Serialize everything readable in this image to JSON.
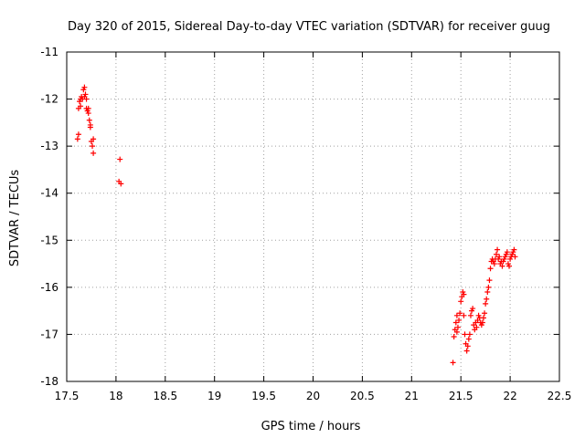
{
  "chart_data": {
    "type": "scatter",
    "title": "Day 320 of 2015, Sidereal Day-to-day VTEC variation (SDTVAR) for receiver guug",
    "xlabel": "GPS time / hours",
    "ylabel": "SDTVAR / TECUs",
    "xlim": [
      17.5,
      22.5
    ],
    "ylim": [
      -18,
      -11
    ],
    "xticks": [
      17.5,
      18,
      18.5,
      19,
      19.5,
      20,
      20.5,
      21,
      21.5,
      22,
      22.5
    ],
    "xtick_labels": [
      "17.5",
      "18",
      "18.5",
      "19",
      "19.5",
      "20",
      "20.5",
      "21",
      "21.5",
      "22",
      "22.5"
    ],
    "yticks": [
      -11,
      -12,
      -13,
      -14,
      -15,
      -16,
      -17,
      -18
    ],
    "ytick_labels": [
      "-11",
      "-12",
      "-13",
      "-14",
      "-15",
      "-16",
      "-17",
      "-18"
    ],
    "grid": true,
    "marker": "+",
    "marker_color": "#ff0000",
    "series": [
      {
        "name": "SDTVAR",
        "x": [
          17.61,
          17.62,
          17.62,
          17.63,
          17.64,
          17.64,
          17.65,
          17.66,
          17.67,
          17.68,
          17.68,
          17.69,
          17.7,
          17.7,
          17.71,
          17.72,
          17.72,
          17.73,
          17.74,
          17.74,
          17.75,
          17.76,
          17.77,
          17.77,
          18.04,
          18.03,
          18.05,
          21.42,
          21.43,
          21.44,
          21.45,
          21.46,
          21.46,
          21.47,
          21.48,
          21.49,
          21.5,
          21.51,
          21.52,
          21.53,
          21.53,
          21.54,
          21.55,
          21.56,
          21.57,
          21.58,
          21.59,
          21.6,
          21.61,
          21.62,
          21.63,
          21.64,
          21.65,
          21.66,
          21.67,
          21.68,
          21.69,
          21.7,
          21.71,
          21.72,
          21.73,
          21.74,
          21.75,
          21.76,
          21.77,
          21.78,
          21.79,
          21.8,
          21.81,
          21.82,
          21.83,
          21.84,
          21.85,
          21.86,
          21.87,
          21.88,
          21.89,
          21.9,
          21.91,
          21.92,
          21.93,
          21.94,
          21.95,
          21.96,
          21.97,
          21.98,
          21.99,
          22.0,
          22.01,
          22.02,
          22.03,
          22.04,
          22.05
        ],
        "y": [
          -12.85,
          -12.75,
          -12.2,
          -12.05,
          -12.0,
          -12.15,
          -11.95,
          -12.0,
          -11.8,
          -11.75,
          -11.95,
          -11.9,
          -12.0,
          -12.2,
          -12.25,
          -12.2,
          -12.3,
          -12.45,
          -12.55,
          -12.6,
          -12.9,
          -13.0,
          -13.15,
          -12.85,
          -13.28,
          -13.75,
          -13.8,
          -17.6,
          -17.05,
          -16.9,
          -16.75,
          -16.6,
          -16.95,
          -16.85,
          -16.7,
          -16.55,
          -16.3,
          -16.2,
          -16.1,
          -16.15,
          -16.6,
          -17.0,
          -17.2,
          -17.35,
          -17.25,
          -17.1,
          -17.0,
          -16.6,
          -16.5,
          -16.45,
          -16.8,
          -16.9,
          -16.75,
          -16.85,
          -16.7,
          -16.6,
          -16.65,
          -16.75,
          -16.8,
          -16.75,
          -16.65,
          -16.55,
          -16.35,
          -16.25,
          -16.1,
          -16.0,
          -15.85,
          -15.6,
          -15.45,
          -15.4,
          -15.45,
          -15.5,
          -15.4,
          -15.3,
          -15.2,
          -15.4,
          -15.35,
          -15.5,
          -15.45,
          -15.55,
          -15.45,
          -15.4,
          -15.35,
          -15.3,
          -15.25,
          -15.5,
          -15.55,
          -15.4,
          -15.35,
          -15.3,
          -15.25,
          -15.2,
          -15.35
        ]
      }
    ]
  }
}
